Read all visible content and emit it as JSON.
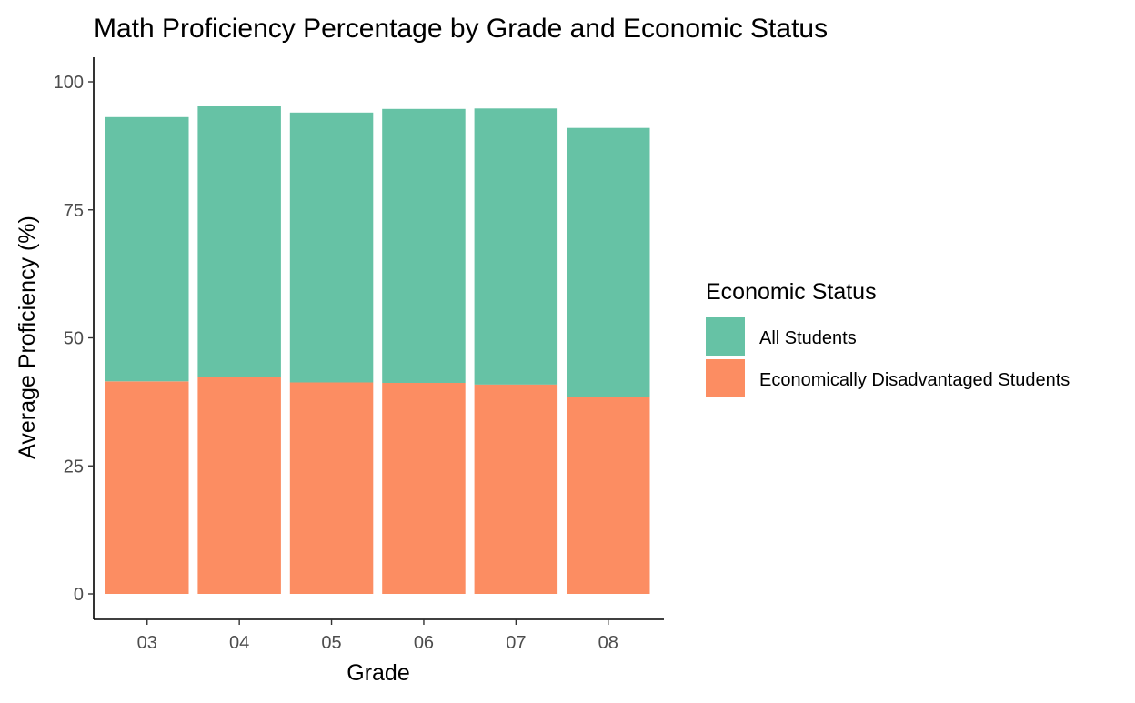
{
  "chart_data": {
    "type": "bar",
    "stacked": true,
    "title": "Math Proficiency Percentage by Grade and Economic Status",
    "xlabel": "Grade",
    "ylabel": "Average Proficiency (%)",
    "categories": [
      "03",
      "04",
      "05",
      "06",
      "07",
      "08"
    ],
    "ylim": [
      0,
      104
    ],
    "yticks": [
      0,
      25,
      50,
      75,
      100
    ],
    "grid": false,
    "legend": {
      "title": "Economic Status",
      "position": "right"
    },
    "series": [
      {
        "name": "Economically Disadvantaged Students",
        "color": "#FC8D62",
        "values": [
          41.5,
          42.3,
          41.3,
          41.2,
          40.9,
          38.4
        ]
      },
      {
        "name": "All Students",
        "color": "#66C2A5",
        "values": [
          51.6,
          52.9,
          52.7,
          53.5,
          53.9,
          52.6
        ]
      }
    ]
  }
}
